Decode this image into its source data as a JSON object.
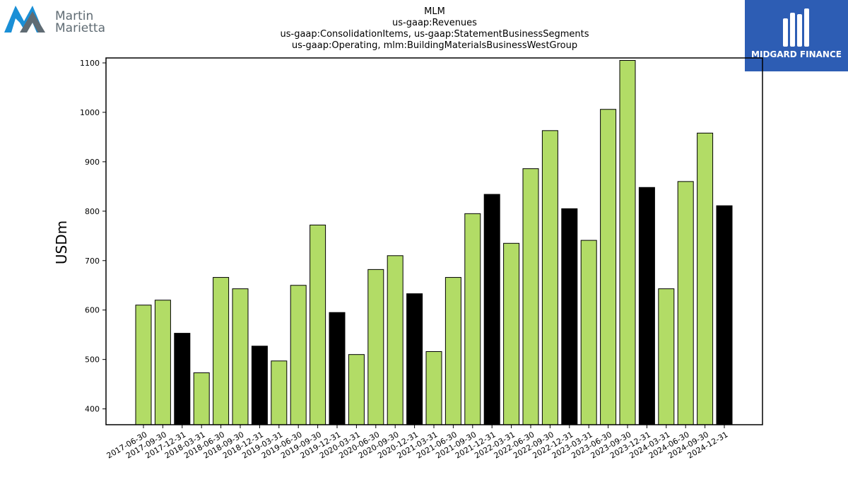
{
  "logos": {
    "left": {
      "line1": "Martin",
      "line2": "Marietta",
      "colors": {
        "blue": "#1a8fd6",
        "gray": "#5f6b73"
      }
    },
    "right": {
      "text": "MIDGARD FINANCE",
      "colors": {
        "background": "#2d5db4",
        "text": "#ffffff"
      }
    }
  },
  "chart_data": {
    "type": "bar",
    "title": [
      "MLM",
      "us-gaap:Revenues",
      "us-gaap:ConsolidationItems, us-gaap:StatementBusinessSegments",
      "us-gaap:Operating, mlm:BuildingMaterialsBusinessWestGroup"
    ],
    "xlabel": "",
    "ylabel": "USDm",
    "ylim": [
      368,
      1110
    ],
    "yticks": [
      400,
      500,
      600,
      700,
      800,
      900,
      1000,
      1100
    ],
    "grid": false,
    "colors": {
      "quarter": "#b2dc66",
      "year_end": "#000000",
      "edge": "#000000"
    },
    "categories": [
      "2017-06-30",
      "2017-09-30",
      "2017-12-31",
      "2018-03-31",
      "2018-06-30",
      "2018-09-30",
      "2018-12-31",
      "2019-03-31",
      "2019-06-30",
      "2019-09-30",
      "2019-12-31",
      "2020-03-31",
      "2020-06-30",
      "2020-09-30",
      "2020-12-31",
      "2021-03-31",
      "2021-06-30",
      "2021-09-30",
      "2021-12-31",
      "2022-03-31",
      "2022-06-30",
      "2022-09-30",
      "2022-12-31",
      "2023-03-31",
      "2023-06-30",
      "2023-09-30",
      "2023-12-31",
      "2024-03-31",
      "2024-06-30",
      "2024-09-30",
      "2024-12-31"
    ],
    "values": [
      610,
      620,
      553,
      473,
      666,
      643,
      527,
      497,
      650,
      772,
      595,
      510,
      682,
      710,
      633,
      516,
      666,
      795,
      834,
      735,
      886,
      963,
      805,
      741,
      1006,
      1105,
      848,
      643,
      860,
      958,
      811
    ]
  }
}
